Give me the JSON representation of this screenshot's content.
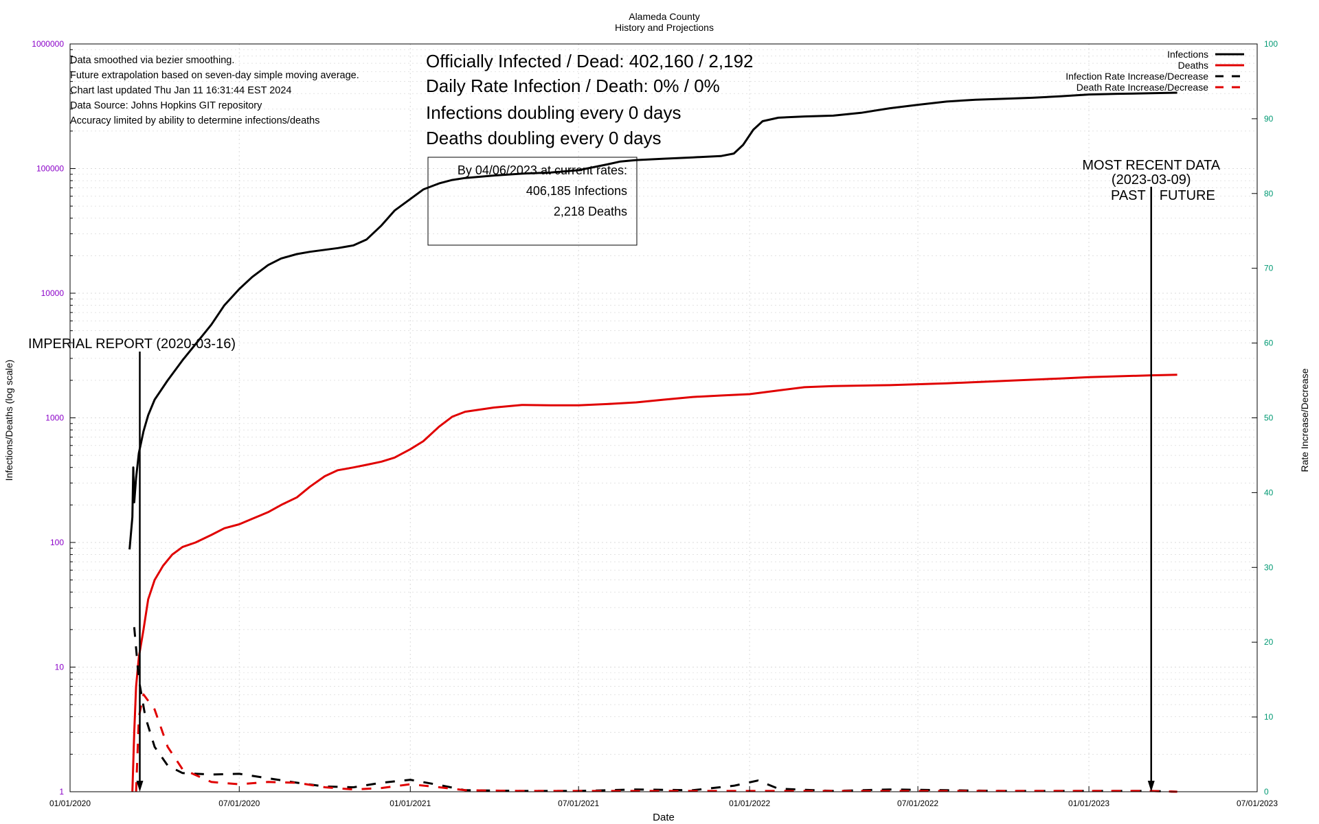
{
  "colors": {
    "infections": "#000000",
    "deaths": "#e00000",
    "left_axis_ticks": "#8a00c8",
    "right_axis_ticks": "#009973",
    "grid": "#d9d9d9"
  },
  "chart_data": {
    "type": "line",
    "title": "Alameda County",
    "subtitle": "History and Projections",
    "xlabel": "Date",
    "ylabel": "Infections/Deaths (log scale)",
    "y2label": "Rate Increase/Decrease",
    "yscale": "log",
    "x_range": [
      "2020-01-01",
      "2023-07-01"
    ],
    "ylim": [
      1,
      1000000
    ],
    "y2lim": [
      0,
      100
    ],
    "grid": true,
    "legend_position": "top-right",
    "x_ticks": [
      "01/01/2020",
      "07/01/2020",
      "01/01/2021",
      "07/01/2021",
      "01/01/2022",
      "07/01/2022",
      "01/01/2023",
      "07/01/2023"
    ],
    "y_ticks": [
      "1",
      "10",
      "100",
      "1000",
      "10000",
      "100000",
      "1000000"
    ],
    "y2_ticks": [
      "0",
      "10",
      "20",
      "30",
      "40",
      "50",
      "60",
      "70",
      "80",
      "90",
      "100"
    ],
    "notes": [
      "Data smoothed via bezier smoothing.",
      "Future extrapolation based on seven-day simple moving average.",
      "Chart last updated Thu Jan 11 16:31:44 EST 2024",
      "Data Source: Johns Hopkins GIT repository",
      "Accuracy limited by ability to determine infections/deaths"
    ],
    "headline": [
      "Officially Infected / Dead:  402,160 / 2,192",
      "Daily Rate Infection / Death:  0% / 0%",
      "Infections doubling every 0 days",
      "Deaths doubling every 0 days"
    ],
    "projection_box": [
      "By 04/06/2023 at current rates:",
      "406,185 Infections",
      "2,218 Deaths"
    ],
    "annotations": {
      "imperial_report": {
        "label": "IMPERIAL REPORT (2020-03-16)",
        "date": "2020-03-16"
      },
      "most_recent": {
        "label_lines": [
          "MOST RECENT DATA",
          "(2023-03-09)"
        ],
        "past": "PAST",
        "future": "FUTURE",
        "date": "2023-03-09"
      }
    },
    "series": [
      {
        "name": "Infections",
        "axis": "left",
        "style": "solid",
        "color": "#000000",
        "points": [
          [
            "2020-03-05",
            88
          ],
          [
            "2020-03-08",
            160
          ],
          [
            "2020-03-09",
            400
          ],
          [
            "2020-03-10",
            210
          ],
          [
            "2020-03-12",
            330
          ],
          [
            "2020-03-15",
            520
          ],
          [
            "2020-03-20",
            780
          ],
          [
            "2020-03-25",
            1050
          ],
          [
            "2020-04-01",
            1400
          ],
          [
            "2020-04-15",
            2000
          ],
          [
            "2020-05-01",
            2900
          ],
          [
            "2020-05-15",
            3900
          ],
          [
            "2020-06-01",
            5600
          ],
          [
            "2020-06-15",
            8000
          ],
          [
            "2020-07-01",
            10800
          ],
          [
            "2020-07-15",
            13500
          ],
          [
            "2020-08-01",
            16800
          ],
          [
            "2020-08-15",
            19000
          ],
          [
            "2020-09-01",
            20600
          ],
          [
            "2020-09-15",
            21500
          ],
          [
            "2020-10-01",
            22300
          ],
          [
            "2020-10-15",
            23000
          ],
          [
            "2020-11-01",
            24200
          ],
          [
            "2020-11-15",
            27000
          ],
          [
            "2020-12-01",
            35000
          ],
          [
            "2020-12-15",
            46000
          ],
          [
            "2021-01-01",
            57000
          ],
          [
            "2021-01-15",
            68000
          ],
          [
            "2021-02-01",
            76000
          ],
          [
            "2021-02-15",
            81000
          ],
          [
            "2021-03-01",
            84000
          ],
          [
            "2021-04-01",
            88000
          ],
          [
            "2021-05-01",
            91000
          ],
          [
            "2021-06-01",
            93000
          ],
          [
            "2021-07-01",
            97000
          ],
          [
            "2021-08-01",
            108000
          ],
          [
            "2021-08-15",
            114000
          ],
          [
            "2021-09-01",
            117000
          ],
          [
            "2021-10-01",
            120000
          ],
          [
            "2021-11-01",
            123000
          ],
          [
            "2021-12-01",
            126000
          ],
          [
            "2021-12-15",
            132000
          ],
          [
            "2021-12-25",
            155000
          ],
          [
            "2022-01-05",
            205000
          ],
          [
            "2022-01-15",
            240000
          ],
          [
            "2022-02-01",
            256000
          ],
          [
            "2022-03-01",
            262000
          ],
          [
            "2022-04-01",
            266000
          ],
          [
            "2022-05-01",
            280000
          ],
          [
            "2022-06-01",
            305000
          ],
          [
            "2022-07-01",
            325000
          ],
          [
            "2022-08-01",
            345000
          ],
          [
            "2022-09-01",
            357000
          ],
          [
            "2022-10-01",
            363000
          ],
          [
            "2022-11-01",
            370000
          ],
          [
            "2022-12-01",
            380000
          ],
          [
            "2023-01-01",
            393000
          ],
          [
            "2023-02-01",
            398000
          ],
          [
            "2023-03-09",
            402160
          ],
          [
            "2023-04-06",
            406185
          ]
        ]
      },
      {
        "name": "Deaths",
        "axis": "left",
        "style": "solid",
        "color": "#e00000",
        "points": [
          [
            "2020-03-08",
            1
          ],
          [
            "2020-03-10",
            3
          ],
          [
            "2020-03-12",
            7
          ],
          [
            "2020-03-15",
            12
          ],
          [
            "2020-03-20",
            20
          ],
          [
            "2020-03-25",
            35
          ],
          [
            "2020-04-01",
            50
          ],
          [
            "2020-04-10",
            65
          ],
          [
            "2020-04-20",
            80
          ],
          [
            "2020-05-01",
            92
          ],
          [
            "2020-05-15",
            100
          ],
          [
            "2020-06-01",
            115
          ],
          [
            "2020-06-15",
            130
          ],
          [
            "2020-07-01",
            140
          ],
          [
            "2020-07-15",
            155
          ],
          [
            "2020-08-01",
            175
          ],
          [
            "2020-08-15",
            200
          ],
          [
            "2020-09-01",
            230
          ],
          [
            "2020-09-15",
            280
          ],
          [
            "2020-10-01",
            340
          ],
          [
            "2020-10-15",
            380
          ],
          [
            "2020-11-01",
            400
          ],
          [
            "2020-11-15",
            420
          ],
          [
            "2020-12-01",
            445
          ],
          [
            "2020-12-15",
            480
          ],
          [
            "2021-01-01",
            560
          ],
          [
            "2021-01-15",
            650
          ],
          [
            "2021-02-01",
            850
          ],
          [
            "2021-02-15",
            1020
          ],
          [
            "2021-03-01",
            1120
          ],
          [
            "2021-04-01",
            1210
          ],
          [
            "2021-05-01",
            1270
          ],
          [
            "2021-06-01",
            1260
          ],
          [
            "2021-07-01",
            1260
          ],
          [
            "2021-08-01",
            1290
          ],
          [
            "2021-09-01",
            1330
          ],
          [
            "2021-10-01",
            1400
          ],
          [
            "2021-11-01",
            1470
          ],
          [
            "2021-12-01",
            1510
          ],
          [
            "2022-01-01",
            1550
          ],
          [
            "2022-02-01",
            1660
          ],
          [
            "2022-03-01",
            1760
          ],
          [
            "2022-04-01",
            1800
          ],
          [
            "2022-06-01",
            1830
          ],
          [
            "2022-08-01",
            1890
          ],
          [
            "2022-10-01",
            1980
          ],
          [
            "2022-12-01",
            2070
          ],
          [
            "2023-01-01",
            2120
          ],
          [
            "2023-03-09",
            2192
          ],
          [
            "2023-04-06",
            2218
          ]
        ]
      },
      {
        "name": "Infection Rate Increase/Decrease",
        "axis": "right",
        "style": "dashed",
        "color": "#000000",
        "points": [
          [
            "2020-03-10",
            22
          ],
          [
            "2020-03-15",
            15
          ],
          [
            "2020-03-22",
            10
          ],
          [
            "2020-04-01",
            6
          ],
          [
            "2020-04-15",
            3.5
          ],
          [
            "2020-05-01",
            2.5
          ],
          [
            "2020-06-01",
            2.3
          ],
          [
            "2020-07-01",
            2.4
          ],
          [
            "2020-08-01",
            1.8
          ],
          [
            "2020-09-01",
            1.2
          ],
          [
            "2020-10-01",
            0.7
          ],
          [
            "2020-11-01",
            0.6
          ],
          [
            "2020-12-01",
            1.2
          ],
          [
            "2021-01-01",
            1.6
          ],
          [
            "2021-02-01",
            0.9
          ],
          [
            "2021-03-01",
            0.2
          ],
          [
            "2021-05-01",
            0.1
          ],
          [
            "2021-07-01",
            0.1
          ],
          [
            "2021-09-01",
            0.3
          ],
          [
            "2021-11-01",
            0.2
          ],
          [
            "2021-12-15",
            0.8
          ],
          [
            "2022-01-10",
            1.5
          ],
          [
            "2022-02-01",
            0.4
          ],
          [
            "2022-04-01",
            0.1
          ],
          [
            "2022-06-01",
            0.3
          ],
          [
            "2022-08-01",
            0.2
          ],
          [
            "2022-10-01",
            0.1
          ],
          [
            "2022-12-01",
            0.1
          ],
          [
            "2023-03-09",
            0.1
          ],
          [
            "2023-04-06",
            0
          ]
        ]
      },
      {
        "name": "Death Rate Increase/Decrease",
        "axis": "right",
        "style": "dashed",
        "color": "#e00000",
        "points": [
          [
            "2020-03-12",
            0
          ],
          [
            "2020-03-15",
            10
          ],
          [
            "2020-03-20",
            13
          ],
          [
            "2020-04-01",
            11
          ],
          [
            "2020-04-15",
            6
          ],
          [
            "2020-05-01",
            3
          ],
          [
            "2020-06-01",
            1.3
          ],
          [
            "2020-07-01",
            1.0
          ],
          [
            "2020-08-01",
            1.3
          ],
          [
            "2020-09-01",
            1.2
          ],
          [
            "2020-10-01",
            0.6
          ],
          [
            "2020-11-01",
            0.3
          ],
          [
            "2020-12-01",
            0.5
          ],
          [
            "2021-01-01",
            1.0
          ],
          [
            "2021-02-01",
            0.6
          ],
          [
            "2021-03-01",
            0.2
          ],
          [
            "2021-05-01",
            0.1
          ],
          [
            "2021-07-01",
            0.1
          ],
          [
            "2021-09-01",
            0.1
          ],
          [
            "2021-11-01",
            0.1
          ],
          [
            "2022-01-01",
            0.1
          ],
          [
            "2022-03-01",
            0.1
          ],
          [
            "2022-06-01",
            0.1
          ],
          [
            "2022-09-01",
            0.1
          ],
          [
            "2022-12-01",
            0.1
          ],
          [
            "2023-03-09",
            0.1
          ],
          [
            "2023-04-06",
            0
          ]
        ]
      }
    ]
  }
}
